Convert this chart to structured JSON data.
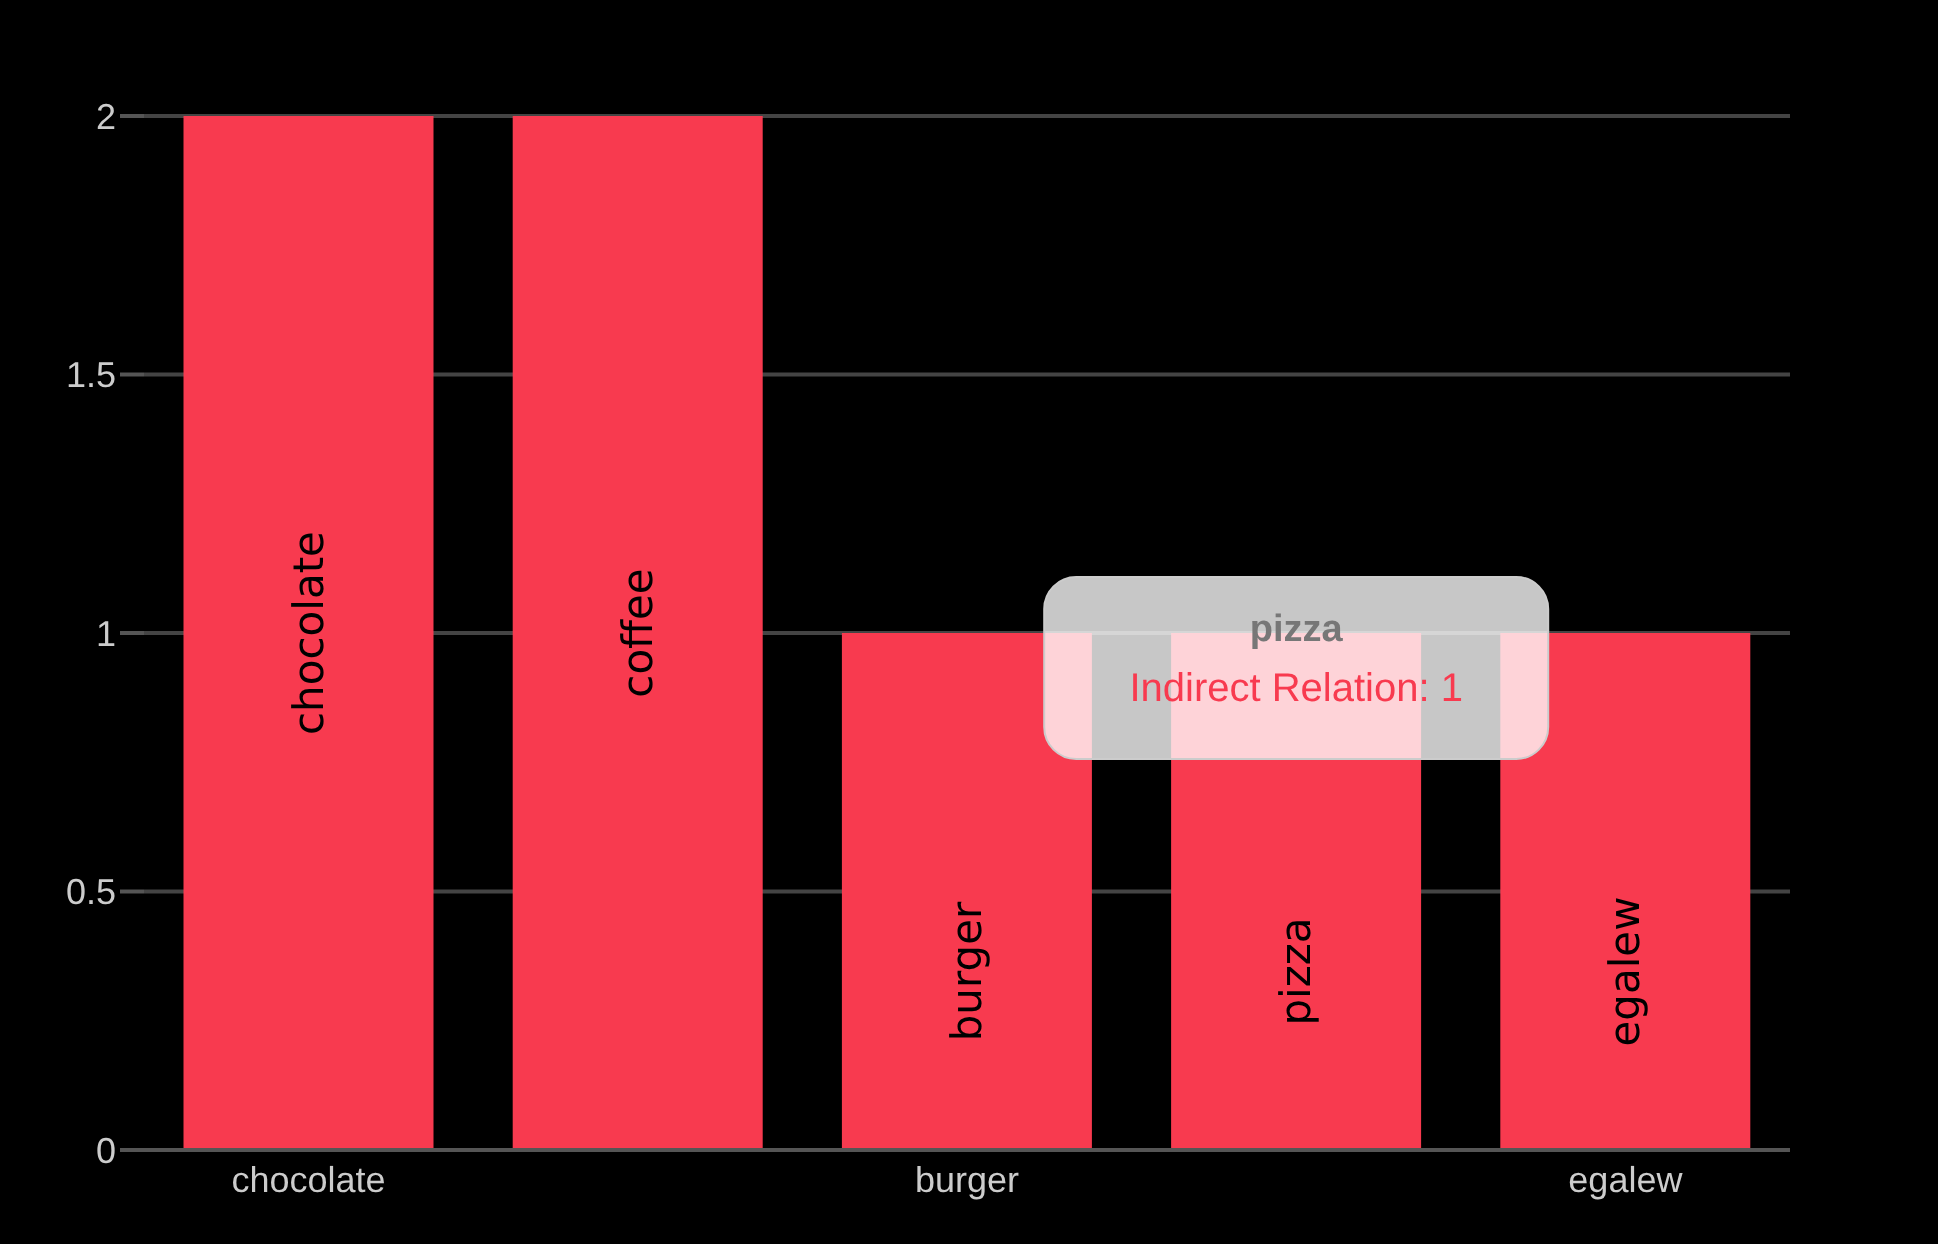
{
  "chart_data": {
    "type": "bar",
    "categories": [
      "chocolate",
      "coffee",
      "burger",
      "pizza",
      "egalew"
    ],
    "values": [
      2,
      2,
      1,
      1,
      1
    ],
    "color": "#f83a4f",
    "ylim": [
      0,
      2
    ],
    "yticks": [
      0,
      0.5,
      1,
      1.5,
      2
    ],
    "grid": "y",
    "legend": false,
    "annotations": [
      {
        "text": "pizza",
        "x": "pizza",
        "y": 1
      },
      "Indirect Relation: 1"
    ]
  }
}
